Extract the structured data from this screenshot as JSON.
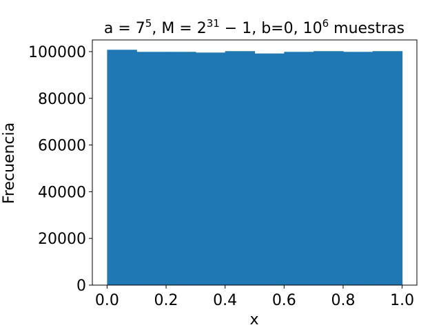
{
  "chart_data": {
    "type": "bar",
    "title": {
      "parts": [
        {
          "text": "a",
          "sup": false
        },
        {
          "text": " = 7",
          "sup": false
        },
        {
          "text": "5",
          "sup": true
        },
        {
          "text": ", M = 2",
          "sup": false
        },
        {
          "text": "31",
          "sup": true
        },
        {
          "text": " − 1, b=0, 10",
          "sup": false
        },
        {
          "text": "6",
          "sup": true
        },
        {
          "text": " muestras",
          "sup": false
        }
      ]
    },
    "xlabel": "x",
    "ylabel": "Frecuencia",
    "xlim": [
      -0.05,
      1.05
    ],
    "ylim": [
      0,
      105000
    ],
    "xticks": [
      0.0,
      0.2,
      0.4,
      0.6,
      0.8,
      1.0
    ],
    "xtick_labels": [
      "0.0",
      "0.2",
      "0.4",
      "0.6",
      "0.8",
      "1.0"
    ],
    "yticks": [
      0,
      20000,
      40000,
      60000,
      80000,
      100000
    ],
    "ytick_labels": [
      "0",
      "20000",
      "40000",
      "60000",
      "80000",
      "100000"
    ],
    "bin_edges": [
      0.0,
      0.1,
      0.2,
      0.3,
      0.4,
      0.5,
      0.6,
      0.7,
      0.8,
      0.9,
      1.0
    ],
    "values": [
      100800,
      99900,
      99900,
      99600,
      100200,
      99200,
      99900,
      100200,
      99900,
      100200
    ],
    "bar_color": "#1f77b4",
    "grid": false,
    "legend": "none"
  }
}
